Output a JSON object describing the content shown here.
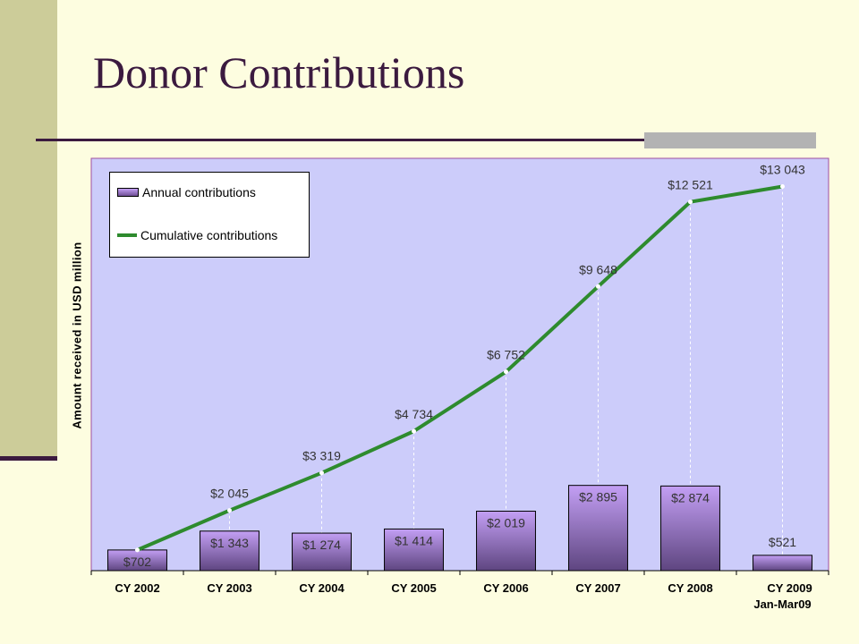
{
  "slide": {
    "title": "Donor Contributions"
  },
  "chart_data": {
    "type": "bar",
    "title": "Donor Contributions",
    "ylabel": "Amount received in USD million",
    "xlabel": "",
    "categories": [
      "CY 2002",
      "CY 2003",
      "CY 2004",
      "CY 2005",
      "CY 2006",
      "CY 2007",
      "CY 2008",
      "CY 2009"
    ],
    "category_sublabels": [
      "",
      "",
      "",
      "",
      "",
      "",
      "",
      "Jan-Mar09"
    ],
    "ylim": [
      0,
      14000
    ],
    "grid": false,
    "legend": "top-left",
    "series": [
      {
        "name": "Annual contributions",
        "type": "bar",
        "values": [
          702,
          1343,
          1274,
          1414,
          2019,
          2895,
          2874,
          521
        ],
        "labels": [
          "$702",
          "$1 343",
          "$1 274",
          "$1 414",
          "$2 019",
          "$2 895",
          "$2 874",
          "$521"
        ],
        "color": "#9b7cc8"
      },
      {
        "name": "Cumulative contributions",
        "type": "line",
        "values": [
          702,
          2045,
          3319,
          4734,
          6752,
          9648,
          12521,
          13043
        ],
        "labels": [
          "$702",
          "$2 045",
          "$3 319",
          "$4 734",
          "$6 752",
          "$9 648",
          "$12 521",
          "$13 043"
        ],
        "color": "#2e8b2e"
      }
    ]
  },
  "colors": {
    "plot_background": "#ccccfa",
    "plot_border": "#a050a0",
    "bar_top": "#c39ff4",
    "bar_bottom": "#5e4580",
    "line": "#2e8b2e",
    "accent": "#3b1a3f"
  }
}
